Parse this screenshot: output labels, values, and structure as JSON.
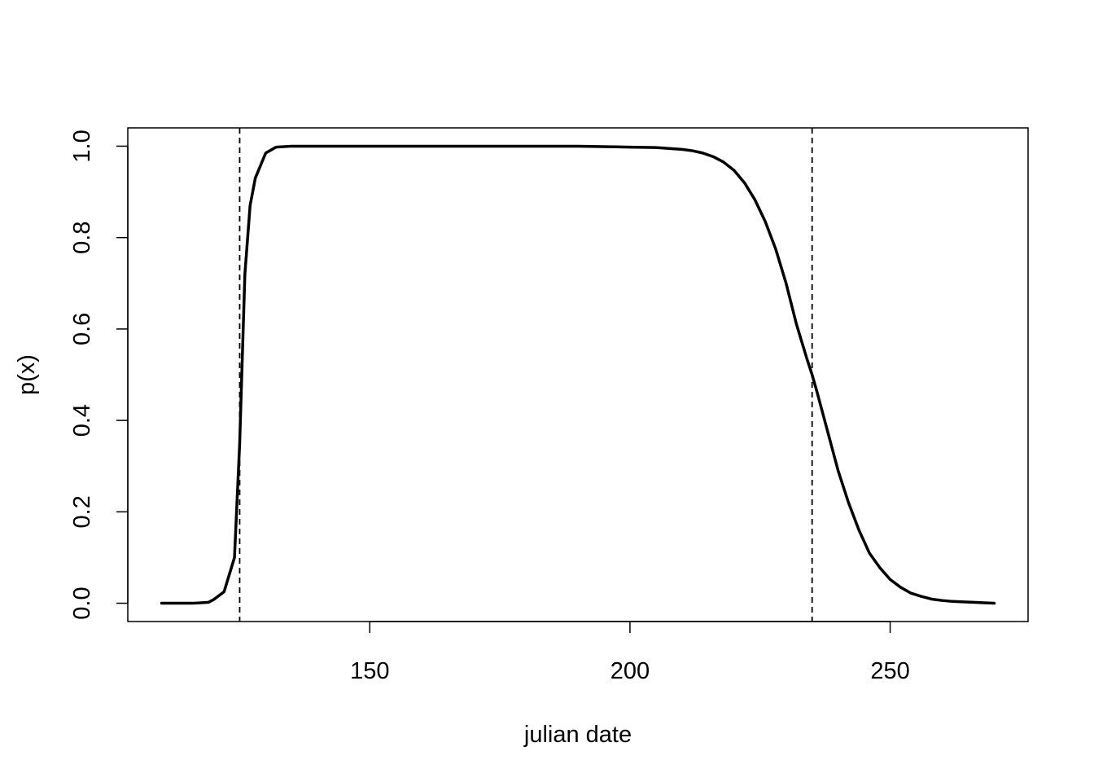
{
  "chart_data": {
    "type": "line",
    "title": "",
    "xlabel": "julian date",
    "ylabel": "p(x)",
    "xlim": [
      103.5,
      276.5
    ],
    "ylim": [
      -0.04,
      1.04
    ],
    "xticks": [
      150,
      200,
      250
    ],
    "yticks": [
      0.0,
      0.2,
      0.4,
      0.6,
      0.8,
      1.0
    ],
    "xtick_labels": [
      "150",
      "200",
      "250"
    ],
    "ytick_labels": [
      "0.0",
      "0.2",
      "0.4",
      "0.6",
      "0.8",
      "1.0"
    ],
    "grid": false,
    "legend": null,
    "vlines": [
      125,
      235
    ],
    "series": [
      {
        "color": "#000000",
        "x": [
          110,
          113,
          116,
          119,
          120,
          122,
          124,
          125,
          126,
          127,
          128,
          130,
          132,
          135,
          140,
          150,
          160,
          170,
          180,
          190,
          200,
          205,
          210,
          212,
          214,
          216,
          218,
          220,
          222,
          224,
          226,
          228,
          230,
          232,
          234,
          235,
          236,
          238,
          240,
          242,
          244,
          246,
          248,
          250,
          252,
          254,
          256,
          258,
          260,
          262,
          264,
          266,
          268,
          270
        ],
        "y": [
          0.0,
          0.0,
          0.0,
          0.002,
          0.008,
          0.025,
          0.1,
          0.35,
          0.72,
          0.87,
          0.93,
          0.985,
          0.998,
          1.0,
          1.0,
          1.0,
          1.0,
          1.0,
          1.0,
          1.0,
          0.998,
          0.997,
          0.993,
          0.99,
          0.985,
          0.977,
          0.965,
          0.947,
          0.92,
          0.883,
          0.835,
          0.775,
          0.7,
          0.61,
          0.535,
          0.5,
          0.46,
          0.375,
          0.29,
          0.22,
          0.16,
          0.11,
          0.078,
          0.052,
          0.035,
          0.022,
          0.015,
          0.009,
          0.006,
          0.004,
          0.003,
          0.002,
          0.001,
          0.0
        ]
      }
    ]
  }
}
